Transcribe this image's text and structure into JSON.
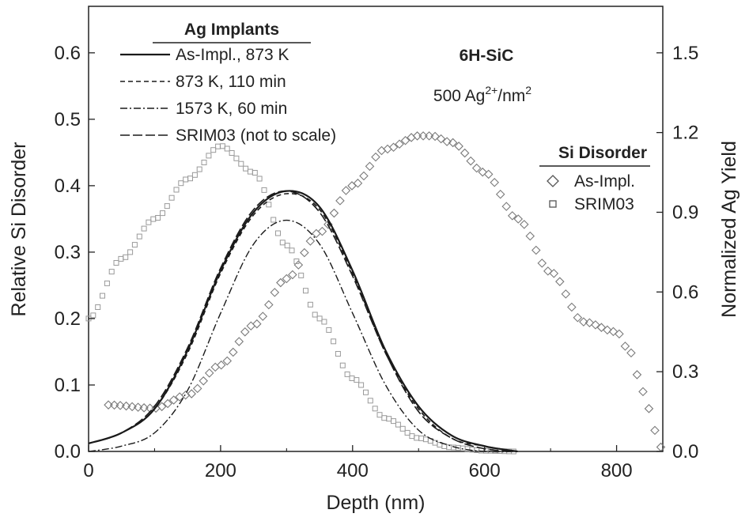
{
  "chart_data": {
    "type": "line",
    "xlabel": "Depth (nm)",
    "ylabel_left": "Relative Si Disorder",
    "ylabel_right": "Normalized Ag Yield",
    "xlim": [
      0,
      870
    ],
    "ylim_left": [
      0,
      0.67
    ],
    "ylim_right": [
      0,
      1.675
    ],
    "xticks": [
      0,
      200,
      400,
      600,
      800
    ],
    "yticks_left": [
      0.0,
      0.1,
      0.2,
      0.3,
      0.4,
      0.5,
      0.6
    ],
    "yticks_right": [
      0.0,
      0.3,
      0.6,
      0.9,
      1.2,
      1.5
    ],
    "annotation_title": "6H-SiC",
    "annotation_fluence_base": "500 Ag",
    "annotation_fluence_sup": "2+",
    "annotation_fluence_mid": "/nm",
    "annotation_fluence_sup2": "2",
    "legend_ag_title": "Ag Implants",
    "legend_si_title": "Si Disorder",
    "line_series": [
      {
        "name": "As-Impl., 873 K",
        "axis": "right",
        "style": "solid",
        "x": [
          0,
          50,
          100,
          150,
          200,
          250,
          300,
          350,
          400,
          450,
          500,
          550,
          600,
          650
        ],
        "y": [
          0.03,
          0.07,
          0.16,
          0.38,
          0.68,
          0.9,
          0.98,
          0.92,
          0.68,
          0.38,
          0.17,
          0.06,
          0.02,
          0.0
        ]
      },
      {
        "name": "873 K, 110 min",
        "axis": "right",
        "style": "dash",
        "x": [
          0,
          50,
          100,
          150,
          200,
          250,
          300,
          350,
          400,
          450,
          500,
          550,
          600,
          650
        ],
        "y": [
          0.03,
          0.07,
          0.16,
          0.37,
          0.67,
          0.89,
          0.97,
          0.91,
          0.67,
          0.37,
          0.16,
          0.05,
          0.02,
          0.0
        ]
      },
      {
        "name": "1573 K, 60 min",
        "axis": "right",
        "style": "dashdot",
        "x": [
          0,
          50,
          100,
          150,
          200,
          250,
          300,
          350,
          400,
          450,
          500,
          550,
          600,
          650
        ],
        "y": [
          0.0,
          0.02,
          0.07,
          0.23,
          0.52,
          0.78,
          0.87,
          0.78,
          0.52,
          0.25,
          0.08,
          0.02,
          0.0,
          0.0
        ]
      },
      {
        "name": "SRIM03 (not to scale)",
        "axis": "right",
        "style": "longdash",
        "x": [
          0,
          50,
          100,
          150,
          200,
          250,
          300,
          350,
          400,
          450,
          500,
          550,
          600,
          650
        ],
        "y": [
          0.03,
          0.07,
          0.17,
          0.39,
          0.69,
          0.91,
          0.98,
          0.9,
          0.66,
          0.37,
          0.15,
          0.05,
          0.01,
          0.0
        ]
      }
    ],
    "marker_series": [
      {
        "name": "As-Impl.",
        "axis": "left",
        "marker": "diamond",
        "x": [
          30,
          100,
          150,
          200,
          250,
          300,
          350,
          400,
          450,
          500,
          520,
          550,
          600,
          650,
          700,
          750,
          800,
          820,
          840,
          860,
          870
        ],
        "y": [
          0.07,
          0.065,
          0.085,
          0.13,
          0.19,
          0.26,
          0.33,
          0.4,
          0.455,
          0.475,
          0.475,
          0.465,
          0.42,
          0.35,
          0.27,
          0.195,
          0.18,
          0.15,
          0.09,
          0.03,
          0.0
        ]
      },
      {
        "name": "SRIM03",
        "axis": "left",
        "marker": "square",
        "x": [
          0,
          50,
          100,
          150,
          200,
          250,
          300,
          350,
          400,
          450,
          500,
          550,
          600,
          650
        ],
        "y": [
          0.2,
          0.29,
          0.35,
          0.41,
          0.46,
          0.42,
          0.31,
          0.2,
          0.11,
          0.05,
          0.02,
          0.006,
          0.001,
          0.0
        ]
      }
    ]
  }
}
